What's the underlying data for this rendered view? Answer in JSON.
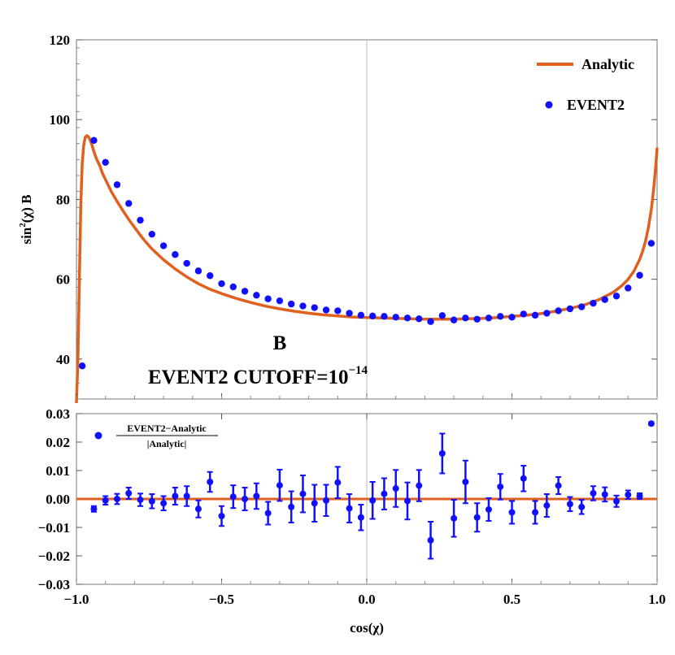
{
  "chart_data": [
    {
      "type": "line",
      "panel": "top",
      "colors": {
        "analytic": "#e0601f",
        "event2": "#1010ff"
      },
      "xlim": [
        -1.0,
        1.0
      ],
      "ylim": [
        30,
        120
      ],
      "ylabel_parts": [
        "sin",
        "2",
        "(χ) B"
      ],
      "y_ticks": [
        40,
        60,
        80,
        100,
        120
      ],
      "y_tick_labels": [
        "40",
        "60",
        "80",
        "100",
        "120"
      ],
      "legend": {
        "position": "top-right",
        "analytic": "Analytic",
        "event2": "EVENT2"
      },
      "annotation_label": "B",
      "annotation_cutoff_base": "EVENT2 CUTOFF=10",
      "annotation_cutoff_exp": "−14",
      "series": [
        {
          "name": "Analytic",
          "style": "line",
          "x": [
            -1.0,
            -0.995,
            -0.99,
            -0.985,
            -0.98,
            -0.975,
            -0.97,
            -0.965,
            -0.96,
            -0.955,
            -0.95,
            -0.945,
            -0.94,
            -0.93,
            -0.92,
            -0.91,
            -0.9,
            -0.88,
            -0.86,
            -0.84,
            -0.82,
            -0.8,
            -0.77,
            -0.74,
            -0.7,
            -0.66,
            -0.62,
            -0.58,
            -0.54,
            -0.5,
            -0.45,
            -0.4,
            -0.35,
            -0.3,
            -0.25,
            -0.2,
            -0.15,
            -0.1,
            -0.05,
            0.0,
            0.05,
            0.1,
            0.15,
            0.2,
            0.25,
            0.3,
            0.35,
            0.4,
            0.45,
            0.5,
            0.55,
            0.6,
            0.65,
            0.7,
            0.75,
            0.8,
            0.85,
            0.88,
            0.9,
            0.92,
            0.94,
            0.95,
            0.96,
            0.97,
            0.98,
            0.985,
            0.99,
            0.993,
            0.996,
            0.998,
            1.0
          ],
          "y": [
            29,
            40,
            60,
            79,
            89,
            93.5,
            95.5,
            96,
            95.8,
            95.2,
            94.3,
            93.3,
            92,
            90,
            88.5,
            86.5,
            85,
            82,
            79.5,
            77.2,
            75,
            73,
            70.1,
            67.6,
            64.9,
            62.6,
            60.6,
            58.9,
            57.5,
            56.4,
            55.2,
            54.2,
            53.3,
            52.6,
            52.0,
            51.5,
            51.1,
            50.8,
            50.55,
            50.4,
            50.3,
            50.2,
            50.1,
            50.0,
            50.0,
            50.0,
            50.1,
            50.2,
            50.4,
            50.7,
            51.0,
            51.4,
            52.0,
            52.7,
            53.6,
            54.9,
            56.8,
            58.5,
            60.0,
            62.0,
            65.0,
            67.0,
            69.5,
            73.0,
            77.5,
            80.5,
            84.0,
            86.5,
            89.0,
            91.0,
            93.0
          ]
        },
        {
          "name": "EVENT2",
          "style": "points",
          "x": [
            -0.98,
            -0.94,
            -0.9,
            -0.86,
            -0.82,
            -0.78,
            -0.74,
            -0.7,
            -0.66,
            -0.62,
            -0.58,
            -0.54,
            -0.5,
            -0.46,
            -0.42,
            -0.38,
            -0.34,
            -0.3,
            -0.26,
            -0.22,
            -0.18,
            -0.14,
            -0.1,
            -0.06,
            -0.02,
            0.02,
            0.06,
            0.1,
            0.14,
            0.18,
            0.22,
            0.26,
            0.3,
            0.34,
            0.38,
            0.42,
            0.46,
            0.5,
            0.54,
            0.58,
            0.62,
            0.66,
            0.7,
            0.74,
            0.78,
            0.82,
            0.86,
            0.9,
            0.94,
            0.98
          ],
          "y": [
            38.3,
            94.8,
            89.3,
            83.7,
            79.0,
            74.8,
            71.3,
            68.4,
            66.2,
            64.0,
            62.1,
            60.9,
            58.9,
            58.1,
            57.0,
            56.0,
            55.1,
            54.6,
            53.8,
            53.3,
            52.9,
            52.3,
            52.1,
            51.5,
            51.0,
            50.8,
            50.7,
            50.5,
            50.3,
            50.1,
            49.4,
            50.9,
            49.8,
            50.3,
            50.0,
            50.3,
            50.7,
            50.5,
            51.3,
            51.0,
            51.5,
            52.1,
            52.6,
            53.1,
            54.0,
            54.9,
            55.8,
            57.8,
            61.0,
            69.0
          ]
        }
      ]
    },
    {
      "type": "scatter",
      "panel": "bottom",
      "xlabel": "cos(χ)",
      "xlim": [
        -1.0,
        1.0
      ],
      "ylim": [
        -0.03,
        0.03
      ],
      "x_ticks": [
        -1.0,
        -0.5,
        0.0,
        0.5,
        1.0
      ],
      "x_tick_labels": [
        "−1.0",
        "−0.5",
        "0.0",
        "0.5",
        "1.0"
      ],
      "y_ticks": [
        -0.03,
        -0.02,
        -0.01,
        0.0,
        0.01,
        0.02,
        0.03
      ],
      "y_tick_labels": [
        "−0.03",
        "−0.02",
        "−0.01",
        "0.00",
        "0.01",
        "0.02",
        "0.03"
      ],
      "legend": {
        "position": "top-left",
        "numerator": "EVENT2−Analytic",
        "denominator": "|Analytic|"
      },
      "zero_line": 0.0,
      "series": [
        {
          "name": "EVENT2−Analytic / |Analytic|",
          "x": [
            -0.94,
            -0.9,
            -0.86,
            -0.82,
            -0.78,
            -0.74,
            -0.7,
            -0.66,
            -0.62,
            -0.58,
            -0.54,
            -0.5,
            -0.46,
            -0.42,
            -0.38,
            -0.34,
            -0.3,
            -0.26,
            -0.22,
            -0.18,
            -0.14,
            -0.1,
            -0.06,
            -0.02,
            0.02,
            0.06,
            0.1,
            0.14,
            0.18,
            0.22,
            0.26,
            0.3,
            0.34,
            0.38,
            0.42,
            0.46,
            0.5,
            0.54,
            0.58,
            0.62,
            0.66,
            0.7,
            0.74,
            0.78,
            0.82,
            0.86,
            0.9,
            0.94,
            0.98
          ],
          "y": [
            -0.0035,
            -0.0005,
            0.0,
            0.002,
            -0.0003,
            -0.0008,
            -0.0015,
            0.001,
            0.001,
            -0.0035,
            0.006,
            -0.006,
            0.0008,
            0.0,
            0.001,
            -0.005,
            0.0048,
            -0.0028,
            0.0018,
            -0.0015,
            -0.0005,
            0.0058,
            -0.0033,
            -0.0065,
            -0.0005,
            0.0018,
            0.0037,
            -0.0007,
            0.0047,
            -0.0145,
            0.016,
            -0.0068,
            0.006,
            -0.0065,
            -0.0037,
            0.0043,
            -0.0047,
            0.0072,
            -0.0047,
            -0.0023,
            0.0047,
            -0.0018,
            -0.0028,
            0.002,
            0.0016,
            -0.0008,
            0.0015,
            0.001,
            0.0265
          ],
          "err": [
            0.001,
            0.0015,
            0.0018,
            0.002,
            0.0022,
            0.0025,
            0.0025,
            0.003,
            0.0035,
            0.003,
            0.0035,
            0.0035,
            0.004,
            0.004,
            0.0045,
            0.004,
            0.0055,
            0.0055,
            0.0065,
            0.0065,
            0.0055,
            0.0055,
            0.005,
            0.0045,
            0.0065,
            0.0055,
            0.0065,
            0.0065,
            0.0055,
            0.0065,
            0.007,
            0.0065,
            0.0075,
            0.005,
            0.004,
            0.0045,
            0.004,
            0.0045,
            0.004,
            0.004,
            0.003,
            0.0025,
            0.0025,
            0.0025,
            0.0025,
            0.002,
            0.0015,
            0.001,
            0.0005
          ]
        }
      ]
    }
  ]
}
